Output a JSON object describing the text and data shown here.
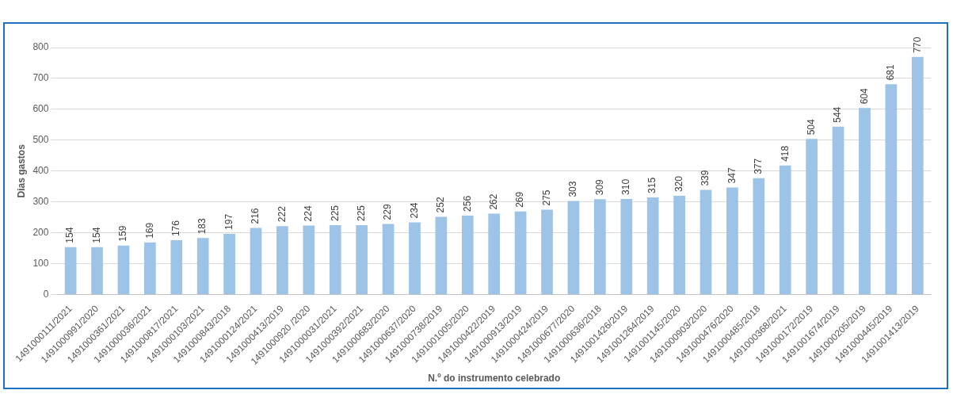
{
  "chart_data": {
    "type": "bar",
    "xlabel": "N.º do instrumento celebrado",
    "ylabel": "Dias gastos",
    "categories": [
      "1491000111/2021",
      "1491000991/2020",
      "1491000361/2021",
      "1491000036/2021",
      "1491000817/2021",
      "1491000103/2021",
      "1491000843/2018",
      "1491000124/2021",
      "1491000413/2019",
      "1491000920 /2020",
      "1491000031/2021",
      "1491000392/2021",
      "1491000683/2020",
      "1491000637/2020",
      "1491000738/2019",
      "1491001005/2020",
      "1491000422/2019",
      "1491000913/2019",
      "1491000424/2019",
      "1491000677/2020",
      "1491000636/2018",
      "1491001426/2019",
      "1491001264/2019",
      "1491001145/2020",
      "1491000903/2020",
      "1491000476/2020",
      "1491000485/2018",
      "1491000368/2021",
      "1491000172/2019",
      "1491001674/2019",
      "1491000205/2019",
      "1491000445/2019",
      "1491001413/2019"
    ],
    "values": [
      154,
      154,
      159,
      169,
      176,
      183,
      197,
      216,
      222,
      224,
      225,
      225,
      229,
      234,
      252,
      256,
      262,
      269,
      275,
      303,
      309,
      310,
      315,
      320,
      339,
      347,
      377,
      418,
      504,
      544,
      604,
      681,
      770
    ],
    "color": "#9dc3e6",
    "ylim": [
      0,
      800
    ],
    "yticks": [
      0,
      100,
      200,
      300,
      400,
      500,
      600,
      700,
      800
    ],
    "grid": "y",
    "data_labels": true,
    "legend": false
  }
}
